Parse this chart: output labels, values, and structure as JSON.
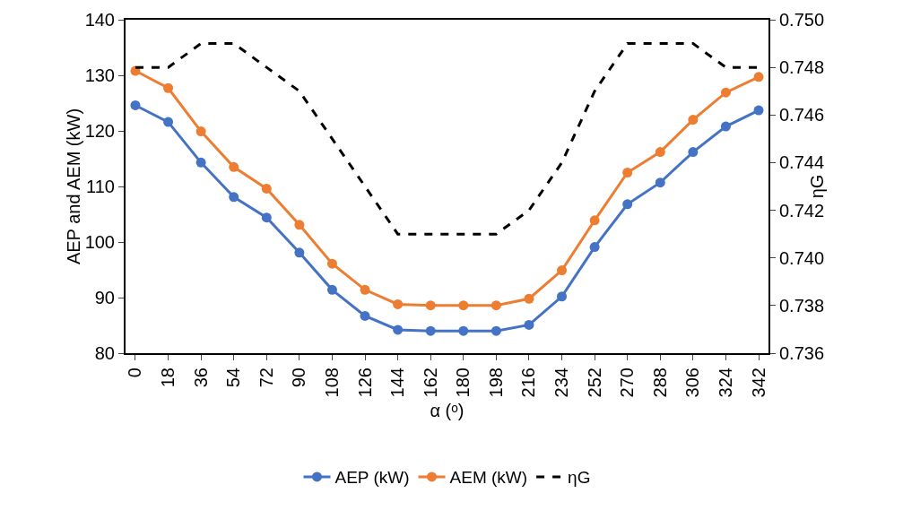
{
  "chart_data": {
    "type": "line",
    "xlabel": "α (ᵒ)",
    "ylabel": "AEP and AEM (kW)",
    "y2label": "ηG",
    "categories": [
      "0",
      "18",
      "36",
      "54",
      "72",
      "90",
      "108",
      "126",
      "144",
      "162",
      "180",
      "198",
      "216",
      "234",
      "252",
      "270",
      "288",
      "306",
      "324",
      "342"
    ],
    "series": [
      {
        "name": "AEP (kW)",
        "color": "#4472c4",
        "marker": "circle",
        "values": [
          124.6,
          121.6,
          114.3,
          108.1,
          104.4,
          98.1,
          91.4,
          86.7,
          84.2,
          84,
          84,
          84,
          85.1,
          90.2,
          99.1,
          106.8,
          110.7,
          116.2,
          120.8,
          123.7
        ]
      },
      {
        "name": "AEM (kW)",
        "color": "#ed7d31",
        "marker": "circle",
        "values": [
          130.8,
          127.7,
          119.9,
          113.5,
          109.6,
          103.1,
          96.1,
          91.4,
          88.8,
          88.6,
          88.6,
          88.6,
          89.8,
          94.9,
          103.9,
          112.5,
          116.2,
          122,
          126.9,
          129.7
        ]
      },
      {
        "name": "ηG",
        "color": "#000000",
        "axis": "y2",
        "marker": "none",
        "line_style": "dashed",
        "values": [
          0.748,
          0.748,
          0.749,
          0.749,
          0.748,
          0.747,
          0.745,
          0.743,
          0.741,
          0.741,
          0.741,
          0.741,
          0.742,
          0.744,
          0.747,
          0.749,
          0.749,
          0.749,
          0.748,
          0.748
        ]
      }
    ],
    "ylim": [
      80,
      140
    ],
    "yticks": [
      80,
      90,
      100,
      110,
      120,
      130,
      140
    ],
    "y2lim": [
      0.736,
      0.75
    ],
    "y2ticks": [
      {
        "value": 0.736,
        "label": "0.736"
      },
      {
        "value": 0.738,
        "label": "0.738"
      },
      {
        "value": 0.74,
        "label": "0.740"
      },
      {
        "value": 0.742,
        "label": "0.742"
      },
      {
        "value": 0.744,
        "label": "0.744"
      },
      {
        "value": 0.746,
        "label": "0.746"
      },
      {
        "value": 0.748,
        "label": "0.748"
      },
      {
        "value": 0.75,
        "label": "0.750"
      }
    ],
    "grid": false,
    "legend": "bottom"
  }
}
